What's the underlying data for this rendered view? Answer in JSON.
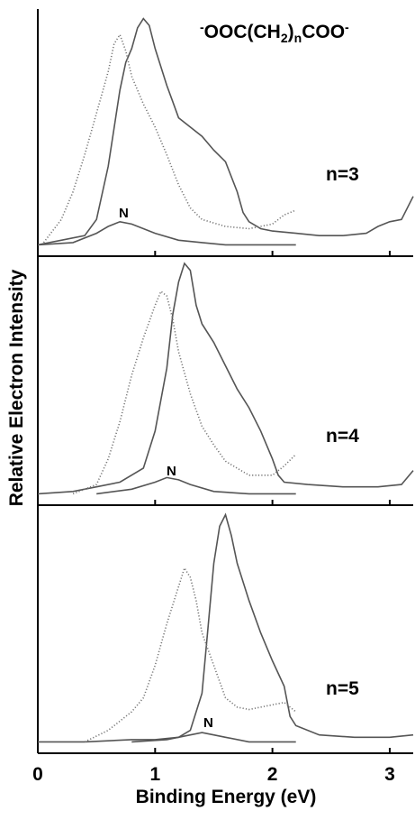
{
  "figure": {
    "ylabel": "Relative Electron Intensity",
    "xlabel": "Binding Energy (eV)",
    "formula": {
      "charge_left": "-",
      "part1": "OOC(CH",
      "sub1": "2",
      "part2": ")",
      "sub2": "n",
      "part3": "COO",
      "charge_right": "-"
    },
    "colors": {
      "line": "#555555",
      "dotted": "#777777",
      "axis": "#000000"
    }
  },
  "chart_data": [
    {
      "type": "line",
      "panel_label": "n=3",
      "peak_label": "N",
      "xlim": [
        0,
        3.2
      ],
      "xticks": [
        0,
        1,
        2,
        3
      ],
      "series": [
        {
          "style": "solid",
          "values": [
            [
              0.0,
              0.01
            ],
            [
              0.2,
              0.03
            ],
            [
              0.4,
              0.05
            ],
            [
              0.5,
              0.12
            ],
            [
              0.6,
              0.35
            ],
            [
              0.7,
              0.68
            ],
            [
              0.75,
              0.8
            ],
            [
              0.8,
              0.86
            ],
            [
              0.85,
              0.95
            ],
            [
              0.9,
              0.99
            ],
            [
              0.95,
              0.96
            ],
            [
              1.0,
              0.86
            ],
            [
              1.05,
              0.78
            ],
            [
              1.1,
              0.7
            ],
            [
              1.15,
              0.63
            ],
            [
              1.2,
              0.56
            ],
            [
              1.3,
              0.52
            ],
            [
              1.4,
              0.48
            ],
            [
              1.5,
              0.42
            ],
            [
              1.6,
              0.37
            ],
            [
              1.7,
              0.24
            ],
            [
              1.75,
              0.15
            ],
            [
              1.8,
              0.11
            ],
            [
              1.9,
              0.08
            ],
            [
              2.0,
              0.07
            ],
            [
              2.2,
              0.06
            ],
            [
              2.4,
              0.05
            ],
            [
              2.6,
              0.05
            ],
            [
              2.8,
              0.06
            ],
            [
              2.9,
              0.09
            ],
            [
              3.0,
              0.11
            ],
            [
              3.1,
              0.12
            ],
            [
              3.2,
              0.22
            ]
          ]
        },
        {
          "style": "dotted",
          "values": [
            [
              0.05,
              0.02
            ],
            [
              0.2,
              0.12
            ],
            [
              0.3,
              0.24
            ],
            [
              0.4,
              0.4
            ],
            [
              0.5,
              0.58
            ],
            [
              0.6,
              0.76
            ],
            [
              0.65,
              0.88
            ],
            [
              0.7,
              0.92
            ],
            [
              0.75,
              0.85
            ],
            [
              0.8,
              0.74
            ],
            [
              0.9,
              0.62
            ],
            [
              1.0,
              0.52
            ],
            [
              1.1,
              0.4
            ],
            [
              1.2,
              0.27
            ],
            [
              1.3,
              0.17
            ],
            [
              1.4,
              0.12
            ],
            [
              1.6,
              0.09
            ],
            [
              1.8,
              0.08
            ],
            [
              2.0,
              0.1
            ],
            [
              2.1,
              0.14
            ],
            [
              2.2,
              0.16
            ]
          ]
        },
        {
          "style": "solid",
          "name": "N",
          "values": [
            [
              0.0,
              0.01
            ],
            [
              0.3,
              0.02
            ],
            [
              0.5,
              0.06
            ],
            [
              0.6,
              0.09
            ],
            [
              0.7,
              0.11
            ],
            [
              0.8,
              0.1
            ],
            [
              0.9,
              0.08
            ],
            [
              1.0,
              0.06
            ],
            [
              1.2,
              0.03
            ],
            [
              1.4,
              0.02
            ],
            [
              1.6,
              0.01
            ],
            [
              2.0,
              0.01
            ],
            [
              2.2,
              0.01
            ]
          ]
        }
      ]
    },
    {
      "type": "line",
      "panel_label": "n=4",
      "peak_label": "N",
      "xlim": [
        0,
        3.2
      ],
      "xticks": [
        0,
        1,
        2,
        3
      ],
      "series": [
        {
          "style": "solid",
          "values": [
            [
              0.0,
              0.01
            ],
            [
              0.3,
              0.02
            ],
            [
              0.5,
              0.04
            ],
            [
              0.7,
              0.06
            ],
            [
              0.9,
              0.12
            ],
            [
              1.0,
              0.28
            ],
            [
              1.1,
              0.55
            ],
            [
              1.15,
              0.78
            ],
            [
              1.2,
              0.92
            ],
            [
              1.25,
              1.0
            ],
            [
              1.3,
              0.97
            ],
            [
              1.35,
              0.82
            ],
            [
              1.4,
              0.74
            ],
            [
              1.5,
              0.66
            ],
            [
              1.6,
              0.56
            ],
            [
              1.7,
              0.46
            ],
            [
              1.8,
              0.38
            ],
            [
              1.9,
              0.28
            ],
            [
              2.0,
              0.16
            ],
            [
              2.05,
              0.09
            ],
            [
              2.1,
              0.06
            ],
            [
              2.3,
              0.05
            ],
            [
              2.6,
              0.04
            ],
            [
              2.9,
              0.04
            ],
            [
              3.1,
              0.05
            ],
            [
              3.2,
              0.11
            ]
          ]
        },
        {
          "style": "dotted",
          "values": [
            [
              0.3,
              0.01
            ],
            [
              0.5,
              0.05
            ],
            [
              0.6,
              0.16
            ],
            [
              0.7,
              0.32
            ],
            [
              0.8,
              0.52
            ],
            [
              0.9,
              0.68
            ],
            [
              1.0,
              0.82
            ],
            [
              1.05,
              0.88
            ],
            [
              1.1,
              0.86
            ],
            [
              1.15,
              0.76
            ],
            [
              1.2,
              0.62
            ],
            [
              1.3,
              0.44
            ],
            [
              1.4,
              0.3
            ],
            [
              1.5,
              0.22
            ],
            [
              1.6,
              0.15
            ],
            [
              1.8,
              0.09
            ],
            [
              2.0,
              0.09
            ],
            [
              2.1,
              0.13
            ],
            [
              2.2,
              0.18
            ]
          ]
        },
        {
          "style": "solid",
          "name": "N",
          "values": [
            [
              0.5,
              0.01
            ],
            [
              0.8,
              0.03
            ],
            [
              1.0,
              0.06
            ],
            [
              1.1,
              0.08
            ],
            [
              1.2,
              0.07
            ],
            [
              1.3,
              0.05
            ],
            [
              1.5,
              0.02
            ],
            [
              1.8,
              0.01
            ],
            [
              2.2,
              0.01
            ]
          ]
        }
      ]
    },
    {
      "type": "line",
      "panel_label": "n=5",
      "peak_label": "N",
      "xlim": [
        0,
        3.2
      ],
      "xticks": [
        0,
        1,
        2,
        3
      ],
      "series": [
        {
          "style": "solid",
          "values": [
            [
              0.0,
              0.01
            ],
            [
              0.4,
              0.01
            ],
            [
              0.8,
              0.02
            ],
            [
              1.0,
              0.02
            ],
            [
              1.2,
              0.03
            ],
            [
              1.3,
              0.06
            ],
            [
              1.4,
              0.22
            ],
            [
              1.45,
              0.5
            ],
            [
              1.5,
              0.78
            ],
            [
              1.55,
              0.94
            ],
            [
              1.6,
              0.99
            ],
            [
              1.65,
              0.9
            ],
            [
              1.7,
              0.78
            ],
            [
              1.8,
              0.62
            ],
            [
              1.9,
              0.48
            ],
            [
              2.0,
              0.36
            ],
            [
              2.1,
              0.25
            ],
            [
              2.15,
              0.12
            ],
            [
              2.2,
              0.08
            ],
            [
              2.4,
              0.04
            ],
            [
              2.7,
              0.03
            ],
            [
              3.0,
              0.03
            ],
            [
              3.2,
              0.04
            ]
          ]
        },
        {
          "style": "dotted",
          "values": [
            [
              0.4,
              0.01
            ],
            [
              0.6,
              0.06
            ],
            [
              0.8,
              0.14
            ],
            [
              0.9,
              0.2
            ],
            [
              1.0,
              0.34
            ],
            [
              1.1,
              0.52
            ],
            [
              1.2,
              0.68
            ],
            [
              1.25,
              0.76
            ],
            [
              1.3,
              0.72
            ],
            [
              1.35,
              0.62
            ],
            [
              1.4,
              0.48
            ],
            [
              1.5,
              0.34
            ],
            [
              1.6,
              0.2
            ],
            [
              1.7,
              0.16
            ],
            [
              1.8,
              0.15
            ],
            [
              1.9,
              0.16
            ],
            [
              2.0,
              0.17
            ],
            [
              2.1,
              0.18
            ],
            [
              2.2,
              0.14
            ]
          ]
        },
        {
          "style": "solid",
          "name": "N",
          "values": [
            [
              0.8,
              0.01
            ],
            [
              1.1,
              0.02
            ],
            [
              1.3,
              0.04
            ],
            [
              1.4,
              0.05
            ],
            [
              1.5,
              0.04
            ],
            [
              1.6,
              0.03
            ],
            [
              1.8,
              0.01
            ],
            [
              2.2,
              0.01
            ]
          ]
        }
      ]
    }
  ]
}
